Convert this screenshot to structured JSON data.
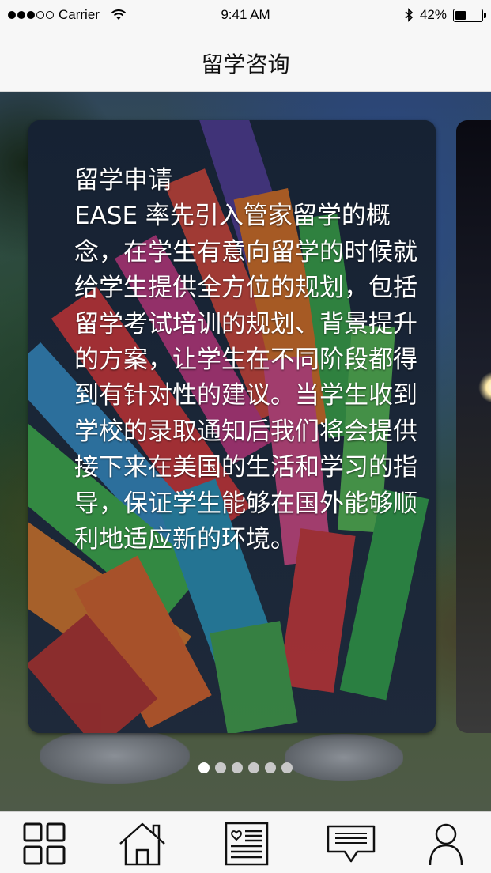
{
  "status_bar": {
    "carrier": "Carrier",
    "time": "9:41 AM",
    "battery_percent": "42%",
    "signal_bars": 3,
    "signal_total": 5,
    "battery_level": 0.42
  },
  "nav": {
    "title": "留学咨询"
  },
  "carousel": {
    "active_index": 0,
    "page_count": 6,
    "cards": [
      {
        "title": "留学申请",
        "body": "EASE 率先引入管家留学的概念，在学生有意向留学的时候就给学生提供全方位的规划，包括留学考试培训的规划、背景提升的方案，让学生在不同阶段都得到有针对性的建议。当学生收到学校的录取通知后我们将会提供接下来在美国的生活和学习的指导，保证学生能够在国外能够顺利地适应新的环境。"
      }
    ]
  },
  "tab_bar": {
    "items": [
      {
        "icon": "grid-icon"
      },
      {
        "icon": "home-icon"
      },
      {
        "icon": "news-icon"
      },
      {
        "icon": "message-icon"
      },
      {
        "icon": "user-icon"
      }
    ]
  }
}
